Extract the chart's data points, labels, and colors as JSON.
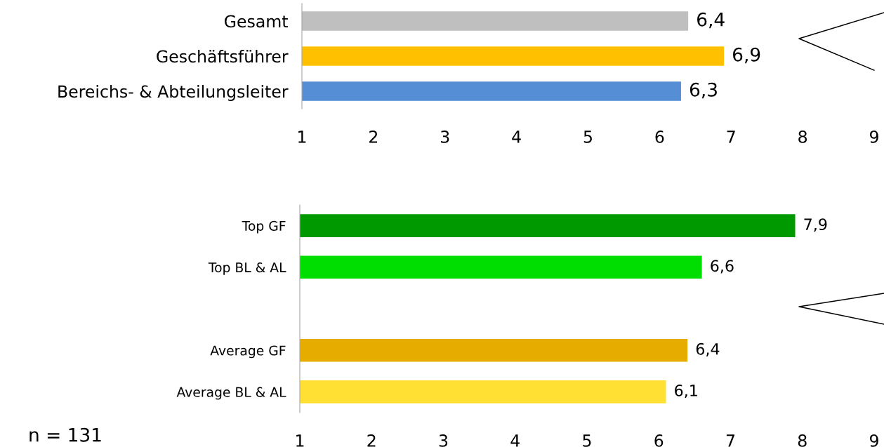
{
  "chart_data": [
    {
      "type": "bar",
      "orientation": "horizontal",
      "categories": [
        "Gesamt",
        "Geschäftsführer",
        "Bereichs- & Abteilungsleiter"
      ],
      "values": [
        6.4,
        6.9,
        6.3
      ],
      "colors": [
        "#bfbfbf",
        "#ffc000",
        "#558ed5"
      ],
      "value_labels": [
        "6,4",
        "6,9",
        "6,3"
      ],
      "xlim": [
        1,
        9
      ],
      "xticks": [
        1,
        2,
        3,
        4,
        5,
        6,
        7,
        8,
        9
      ],
      "grid": false,
      "legend": false
    },
    {
      "type": "bar",
      "orientation": "horizontal",
      "categories": [
        "Top GF",
        "Top BL & AL",
        null,
        "Average GF",
        "Average BL & AL"
      ],
      "values": [
        7.9,
        6.6,
        null,
        6.4,
        6.1
      ],
      "colors": [
        "#009900",
        "#00dd00",
        null,
        "#e6ac00",
        "#ffe033"
      ],
      "value_labels": [
        "7,9",
        "6,6",
        null,
        "6,4",
        "6,1"
      ],
      "xlim": [
        1,
        9
      ],
      "xticks": [
        1,
        2,
        3,
        4,
        5,
        6,
        7,
        8,
        9
      ],
      "grid": false,
      "legend": false,
      "annotations": [
        "n = 131"
      ]
    }
  ]
}
